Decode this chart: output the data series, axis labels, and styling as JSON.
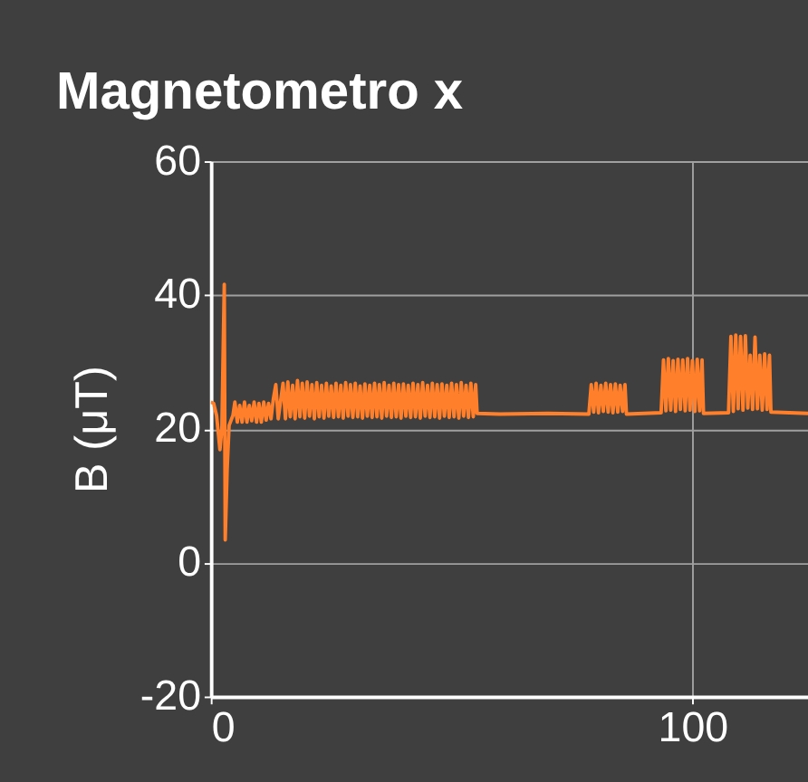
{
  "chart_data": {
    "type": "line",
    "title": "Magnetometro x",
    "ylabel": "B (μT)",
    "xlim": [
      0,
      124
    ],
    "ylim": [
      -20,
      60
    ],
    "xticks": [
      0,
      100
    ],
    "yticks": [
      -20,
      0,
      20,
      40,
      60
    ],
    "grid": true,
    "series": [
      {
        "color": "#ff7f2a",
        "x": [
          0.0,
          0.6,
          1.2,
          1.9,
          2.3,
          2.8,
          3.0,
          3.4,
          3.8,
          4.6,
          5.0,
          5.5,
          6.0,
          6.5,
          7.0,
          7.5,
          8.0,
          8.5,
          9.0,
          9.5,
          10.0,
          10.5,
          11.0,
          11.5,
          12.0,
          12.5,
          13.0,
          13.5,
          14.0,
          15.0,
          15.5,
          16.0,
          16.5,
          17.0,
          17.5,
          18.0,
          18.5,
          19.0,
          19.5,
          20.0,
          20.5,
          21.0,
          21.5,
          22.0,
          22.5,
          23.0,
          23.5,
          24.0,
          24.5,
          25.0,
          25.5,
          26.0,
          26.5,
          27.0,
          27.5,
          28.0,
          28.5,
          29.0,
          29.5,
          30.0,
          30.5,
          31.0,
          31.5,
          32.0,
          32.5,
          33.0,
          33.5,
          34.0,
          34.5,
          35.0,
          35.5,
          36.0,
          36.5,
          37.0,
          37.5,
          38.0,
          38.5,
          39.0,
          39.5,
          40.0,
          40.5,
          41.0,
          41.5,
          42.0,
          42.5,
          43.0,
          43.5,
          44.0,
          44.5,
          45.0,
          45.5,
          46.0,
          46.5,
          47.0,
          47.5,
          48.0,
          48.5,
          49.0,
          49.5,
          50.0,
          50.5,
          51.0,
          51.5,
          52.0,
          52.5,
          53.0,
          53.5,
          54.0,
          54.5,
          55.0,
          55.3,
          60.0,
          70.0,
          78.5,
          79.0,
          79.5,
          80.0,
          80.5,
          81.0,
          81.5,
          82.0,
          82.5,
          83.0,
          83.5,
          84.0,
          84.5,
          85.0,
          85.5,
          86.0,
          86.3,
          93.5,
          94.0,
          94.5,
          95.0,
          95.5,
          96.0,
          96.5,
          97.0,
          97.5,
          98.0,
          98.5,
          99.0,
          99.5,
          100.0,
          100.5,
          101.0,
          101.5,
          102.0,
          102.3,
          107.5,
          108.0,
          108.5,
          109.0,
          109.5,
          110.0,
          110.5,
          111.0,
          111.5,
          112.0,
          112.5,
          113.0,
          113.5,
          114.0,
          114.5,
          115.0,
          115.5,
          116.0,
          116.3,
          124.0
        ],
        "values": [
          24,
          23.8,
          22,
          16.9,
          20,
          41.6,
          3.4,
          14,
          20.5,
          22,
          24,
          21,
          23.5,
          21,
          24,
          21,
          23.5,
          21.2,
          24,
          21,
          23.8,
          21,
          24,
          21.3,
          23.8,
          21.5,
          24.5,
          26.6,
          21.5,
          26.8,
          21.5,
          27,
          21.8,
          26.5,
          21.5,
          27.2,
          21.8,
          26.8,
          21.6,
          27,
          21.9,
          26.6,
          21.5,
          26.9,
          21.8,
          26.5,
          21.6,
          26.8,
          21.9,
          26.4,
          21.7,
          26.8,
          21.8,
          26.5,
          21.6,
          26.9,
          21.9,
          26.6,
          21.7,
          26.8,
          21.8,
          26.4,
          21.6,
          26.7,
          21.9,
          26.5,
          21.7,
          26.8,
          21.8,
          26.6,
          21.6,
          26.9,
          21.9,
          26.5,
          21.7,
          26.8,
          21.8,
          26.6,
          21.6,
          26.7,
          21.9,
          26.5,
          21.7,
          26.8,
          21.8,
          26.6,
          21.6,
          26.9,
          21.9,
          26.5,
          21.7,
          26.8,
          21.8,
          26.6,
          21.6,
          26.7,
          21.9,
          26.5,
          21.7,
          26.8,
          21.8,
          26.6,
          21.6,
          26.9,
          21.9,
          26.5,
          21.7,
          26.8,
          21.8,
          26.6,
          22.3,
          22.2,
          22.3,
          22.2,
          26.6,
          22.5,
          26.8,
          22.4,
          26.5,
          22.6,
          26.8,
          22.5,
          26.6,
          22.4,
          26.7,
          22.5,
          26.5,
          22.6,
          26.6,
          22.2,
          22.4,
          30.3,
          22.7,
          30.5,
          22.8,
          30.2,
          22.6,
          30.4,
          22.9,
          30.3,
          22.7,
          30.5,
          22.8,
          30.2,
          22.6,
          30.4,
          22.7,
          30.3,
          22.3,
          22.4,
          33.8,
          22.6,
          34,
          23,
          33.8,
          22.8,
          33.9,
          23.1,
          31,
          22.9,
          33.7,
          23,
          31,
          22.8,
          31.2,
          22.9,
          31,
          22.5,
          22.3
        ]
      }
    ]
  }
}
